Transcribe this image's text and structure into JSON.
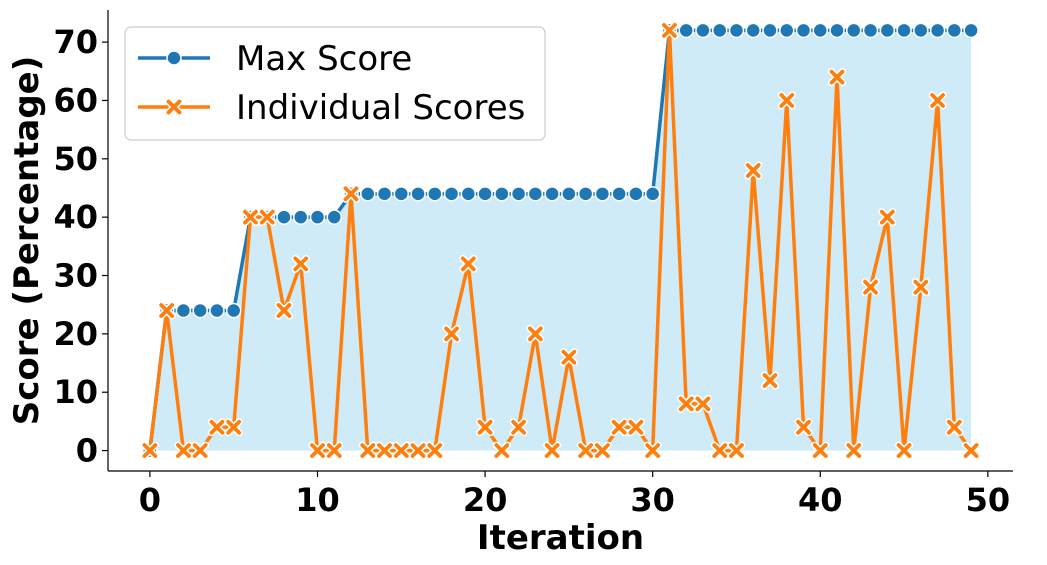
{
  "chart_data": {
    "type": "line",
    "xlabel": "Iteration",
    "ylabel": "Score (Percentage)",
    "xlim": [
      -2.5,
      51.5
    ],
    "ylim": [
      -3.5,
      75.5
    ],
    "xticks": [
      0,
      10,
      20,
      30,
      40,
      50
    ],
    "yticks": [
      0,
      10,
      20,
      30,
      40,
      50,
      60,
      70
    ],
    "grid": false,
    "legend_position": "upper-left",
    "fill_under": "Max Score",
    "fill_color": "#87CEEB",
    "x": [
      0,
      1,
      2,
      3,
      4,
      5,
      6,
      7,
      8,
      9,
      10,
      11,
      12,
      13,
      14,
      15,
      16,
      17,
      18,
      19,
      20,
      21,
      22,
      23,
      24,
      25,
      26,
      27,
      28,
      29,
      30,
      31,
      32,
      33,
      34,
      35,
      36,
      37,
      38,
      39,
      40,
      41,
      42,
      43,
      44,
      45,
      46,
      47,
      48,
      49
    ],
    "series": [
      {
        "name": "Max Score",
        "color": "#1f77b4",
        "marker": "circle",
        "values": [
          0,
          24,
          24,
          24,
          24,
          24,
          40,
          40,
          40,
          40,
          40,
          40,
          44,
          44,
          44,
          44,
          44,
          44,
          44,
          44,
          44,
          44,
          44,
          44,
          44,
          44,
          44,
          44,
          44,
          44,
          44,
          72,
          72,
          72,
          72,
          72,
          72,
          72,
          72,
          72,
          72,
          72,
          72,
          72,
          72,
          72,
          72,
          72,
          72,
          72
        ]
      },
      {
        "name": "Individual Scores",
        "color": "#ff7f0e",
        "marker": "x",
        "values": [
          0,
          24,
          0,
          0,
          4,
          4,
          40,
          40,
          24,
          32,
          0,
          0,
          44,
          0,
          0,
          0,
          0,
          0,
          20,
          32,
          4,
          0,
          4,
          20,
          0,
          16,
          0,
          0,
          4,
          4,
          0,
          72,
          8,
          8,
          0,
          0,
          48,
          12,
          60,
          4,
          0,
          64,
          0,
          28,
          40,
          0,
          28,
          60,
          4,
          0
        ]
      }
    ]
  }
}
